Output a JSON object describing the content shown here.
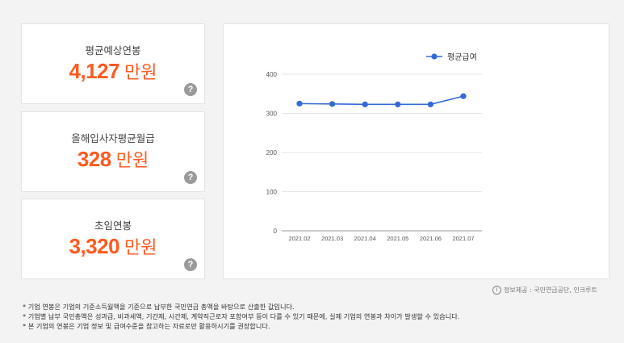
{
  "stats": [
    {
      "label": "평균예상연봉",
      "value": "4,127",
      "unit": "만원"
    },
    {
      "label": "올해입사자평균월급",
      "value": "328",
      "unit": "만원"
    },
    {
      "label": "초임연봉",
      "value": "3,320",
      "unit": "만원"
    }
  ],
  "help_glyph": "?",
  "accent_color": "#ff5a1f",
  "chart_data": {
    "type": "line",
    "categories": [
      "2021.02",
      "2021.03",
      "2021.04",
      "2021.05",
      "2021.06",
      "2021.07"
    ],
    "series": [
      {
        "name": "평균급여",
        "values": [
          325,
          324,
          323,
          323,
          323,
          344
        ],
        "color": "#3468d6"
      }
    ],
    "ylim": [
      0,
      400
    ],
    "yticks": [
      0,
      100,
      200,
      300,
      400
    ],
    "grid": true,
    "legend": "top-right"
  },
  "source": {
    "icon": "i",
    "text": "정보제공 : 국민연금공단, 인크루트"
  },
  "notes": [
    "* 기업 연봉은 기업의 기준소득월액을 기준으로 납부한 국민연금 총액을 바탕으로 산출한 값입니다.",
    "* 기업별 납부 국민총액은 성과급, 비과세액, 기간제, 시간제, 계약직근로자 포함여부 등이 다를 수 있기 때문에, 실제 기업의 연봉과 차이가 발생할 수 있습니다.",
    "* 본 기업의 연봉은 기업 정보 및 급여수준을 참고하는 자료로만 활용하시기를 권장합니다."
  ]
}
